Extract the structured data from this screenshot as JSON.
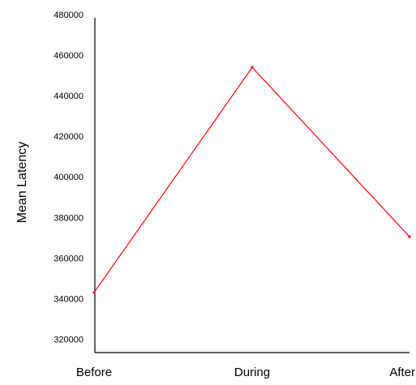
{
  "chart_data": {
    "type": "line",
    "title": "",
    "xlabel": "",
    "ylabel": "Mean Latency",
    "categories": [
      "Before",
      "During",
      "After"
    ],
    "series": [
      {
        "values": [
          343000,
          454000,
          370500
        ],
        "color": "#ff0000"
      }
    ],
    "ylim": [
      315000,
      480000
    ],
    "yticks": [
      320000,
      340000,
      360000,
      380000,
      400000,
      420000,
      440000,
      460000,
      480000
    ],
    "ytick_labels": [
      "320000",
      "340000",
      "360000",
      "380000",
      "400000",
      "420000",
      "440000",
      "460000",
      "480000"
    ],
    "grid": false,
    "axis_color": "#000000"
  }
}
